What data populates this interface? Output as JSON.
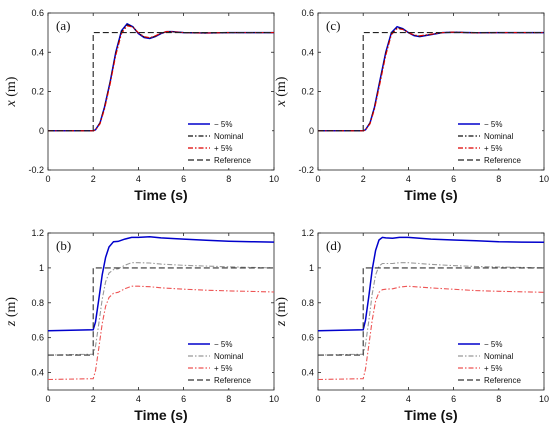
{
  "chart_data": [
    {
      "type": "line",
      "panel_label": "(a)",
      "xlabel": "Time (s)",
      "ylabel_var": "x",
      "ylabel_unit": " (m)",
      "xlim": [
        0,
        10
      ],
      "ylim": [
        -0.2,
        0.6
      ],
      "xticks": [
        "0",
        "2",
        "4",
        "6",
        "8",
        "10"
      ],
      "yticks": [
        "-0.2",
        "0",
        "0.2",
        "0.4",
        "0.6"
      ],
      "legend_position": "bottom-right",
      "series": [
        {
          "name": "− 5%",
          "color": "#0000cc",
          "style": "solid",
          "x": [
            0,
            2.0,
            2.1,
            2.3,
            2.5,
            2.75,
            3.0,
            3.25,
            3.5,
            3.75,
            4.0,
            4.25,
            4.5,
            4.75,
            5.0,
            5.25,
            5.5,
            6.0,
            7.0,
            8.0,
            10.0
          ],
          "y": [
            0,
            0,
            0.005,
            0.04,
            0.12,
            0.25,
            0.4,
            0.51,
            0.545,
            0.53,
            0.495,
            0.475,
            0.47,
            0.48,
            0.495,
            0.505,
            0.505,
            0.5,
            0.498,
            0.5,
            0.5
          ]
        },
        {
          "name": "Nominal",
          "color": "#111111",
          "style": "dashdot",
          "x": [
            0,
            2.0,
            2.1,
            2.3,
            2.5,
            2.75,
            3.0,
            3.25,
            3.5,
            3.75,
            4.0,
            4.25,
            4.5,
            4.75,
            5.0,
            5.25,
            5.5,
            6.0,
            7.0,
            8.0,
            10.0
          ],
          "y": [
            0,
            0,
            0.005,
            0.04,
            0.12,
            0.25,
            0.395,
            0.505,
            0.54,
            0.53,
            0.497,
            0.478,
            0.472,
            0.482,
            0.496,
            0.505,
            0.504,
            0.5,
            0.498,
            0.5,
            0.5
          ]
        },
        {
          "name": "+ 5%",
          "color": "#dd0000",
          "style": "dashdot",
          "x": [
            0,
            2.0,
            2.1,
            2.3,
            2.5,
            2.75,
            3.0,
            3.25,
            3.5,
            3.75,
            4.0,
            4.25,
            4.5,
            4.75,
            5.0,
            5.25,
            5.5,
            6.0,
            7.0,
            8.0,
            10.0
          ],
          "y": [
            0,
            0,
            0.004,
            0.035,
            0.11,
            0.24,
            0.385,
            0.495,
            0.535,
            0.528,
            0.5,
            0.48,
            0.474,
            0.484,
            0.497,
            0.505,
            0.504,
            0.5,
            0.498,
            0.5,
            0.5
          ]
        },
        {
          "name": "Reference",
          "color": "#222222",
          "style": "dashed",
          "x": [
            0,
            2.0,
            2.0,
            10.0
          ],
          "y": [
            0,
            0,
            0.5,
            0.5
          ]
        }
      ]
    },
    {
      "type": "line",
      "panel_label": "(c)",
      "xlabel": "Time (s)",
      "ylabel_var": "x",
      "ylabel_unit": " (m)",
      "xlim": [
        0,
        10
      ],
      "ylim": [
        -0.2,
        0.6
      ],
      "xticks": [
        "0",
        "2",
        "4",
        "6",
        "8",
        "10"
      ],
      "yticks": [
        "-0.2",
        "0",
        "0.2",
        "0.4",
        "0.6"
      ],
      "legend_position": "bottom-right",
      "series": [
        {
          "name": "− 5%",
          "color": "#0000cc",
          "style": "solid",
          "x": [
            0,
            2.0,
            2.1,
            2.3,
            2.5,
            2.75,
            3.0,
            3.25,
            3.5,
            3.75,
            4.0,
            4.25,
            4.5,
            5.0,
            5.5,
            6.0,
            7.0,
            8.0,
            10.0
          ],
          "y": [
            0,
            0,
            0.005,
            0.04,
            0.12,
            0.26,
            0.4,
            0.5,
            0.53,
            0.52,
            0.5,
            0.485,
            0.48,
            0.49,
            0.5,
            0.502,
            0.499,
            0.5,
            0.5
          ]
        },
        {
          "name": "Nominal",
          "color": "#111111",
          "style": "dashdot",
          "x": [
            0,
            2.0,
            2.1,
            2.3,
            2.5,
            2.75,
            3.0,
            3.25,
            3.5,
            3.75,
            4.0,
            4.25,
            4.5,
            5.0,
            5.5,
            6.0,
            7.0,
            8.0,
            10.0
          ],
          "y": [
            0,
            0,
            0.005,
            0.04,
            0.12,
            0.255,
            0.395,
            0.495,
            0.525,
            0.518,
            0.5,
            0.487,
            0.482,
            0.491,
            0.5,
            0.502,
            0.499,
            0.5,
            0.5
          ]
        },
        {
          "name": "+ 5%",
          "color": "#dd0000",
          "style": "dashdot",
          "x": [
            0,
            2.0,
            2.1,
            2.3,
            2.5,
            2.75,
            3.0,
            3.25,
            3.5,
            3.75,
            4.0,
            4.25,
            4.5,
            5.0,
            5.5,
            6.0,
            7.0,
            8.0,
            10.0
          ],
          "y": [
            0,
            0,
            0.004,
            0.035,
            0.11,
            0.245,
            0.385,
            0.49,
            0.52,
            0.516,
            0.5,
            0.488,
            0.484,
            0.492,
            0.5,
            0.502,
            0.499,
            0.5,
            0.5
          ]
        },
        {
          "name": "Reference",
          "color": "#222222",
          "style": "dashed",
          "x": [
            0,
            2.0,
            2.0,
            10.0
          ],
          "y": [
            0,
            0,
            0.5,
            0.5
          ]
        }
      ]
    },
    {
      "type": "line",
      "panel_label": "(b)",
      "xlabel": "Time (s)",
      "ylabel_var": "z",
      "ylabel_unit": " (m)",
      "xlim": [
        0,
        10
      ],
      "ylim": [
        0.3,
        1.2
      ],
      "xticks": [
        "0",
        "2",
        "4",
        "6",
        "8",
        "10"
      ],
      "yticks": [
        "0.4",
        "0.6",
        "0.8",
        "1",
        "1.2"
      ],
      "legend_position": "bottom-right",
      "series": [
        {
          "name": "− 5%",
          "color": "#0000cc",
          "style": "solid",
          "x": [
            0,
            2.0,
            2.1,
            2.25,
            2.4,
            2.55,
            2.7,
            2.9,
            3.1,
            3.4,
            3.7,
            4.0,
            4.5,
            5.0,
            6.0,
            7.0,
            8.0,
            9.0,
            10.0
          ],
          "y": [
            0.64,
            0.645,
            0.69,
            0.82,
            0.96,
            1.06,
            1.12,
            1.15,
            1.152,
            1.165,
            1.175,
            1.175,
            1.178,
            1.172,
            1.165,
            1.158,
            1.153,
            1.15,
            1.148
          ]
        },
        {
          "name": "Nominal",
          "color": "#999999",
          "style": "dashdot",
          "x": [
            0,
            2.0,
            2.1,
            2.25,
            2.4,
            2.55,
            2.7,
            2.9,
            3.1,
            3.4,
            3.7,
            4.0,
            4.5,
            5.0,
            6.0,
            7.0,
            8.0,
            9.0,
            10.0
          ],
          "y": [
            0.5,
            0.505,
            0.55,
            0.68,
            0.82,
            0.92,
            0.97,
            0.99,
            0.995,
            1.015,
            1.03,
            1.03,
            1.028,
            1.022,
            1.015,
            1.01,
            1.006,
            1.003,
            1.0
          ]
        },
        {
          "name": "+ 5%",
          "color": "#ee5555",
          "style": "dashdot",
          "x": [
            0,
            2.0,
            2.1,
            2.25,
            2.4,
            2.55,
            2.7,
            2.9,
            3.1,
            3.4,
            3.7,
            4.0,
            4.5,
            5.0,
            6.0,
            7.0,
            8.0,
            9.0,
            10.0
          ],
          "y": [
            0.36,
            0.365,
            0.41,
            0.54,
            0.68,
            0.78,
            0.83,
            0.855,
            0.86,
            0.88,
            0.895,
            0.895,
            0.892,
            0.886,
            0.878,
            0.872,
            0.868,
            0.865,
            0.862
          ]
        },
        {
          "name": "Reference",
          "color": "#333333",
          "style": "dashed",
          "x": [
            0,
            2.0,
            2.0,
            10.0
          ],
          "y": [
            0.5,
            0.5,
            1.0,
            1.0
          ]
        }
      ]
    },
    {
      "type": "line",
      "panel_label": "(d)",
      "xlabel": "Time (s)",
      "ylabel_var": "z",
      "ylabel_unit": " (m)",
      "xlim": [
        0,
        10
      ],
      "ylim": [
        0.3,
        1.2
      ],
      "xticks": [
        "0",
        "2",
        "4",
        "6",
        "8",
        "10"
      ],
      "yticks": [
        "0.4",
        "0.6",
        "0.8",
        "1",
        "1.2"
      ],
      "legend_position": "bottom-right",
      "series": [
        {
          "name": "− 5%",
          "color": "#0000cc",
          "style": "solid",
          "x": [
            0,
            2.0,
            2.1,
            2.25,
            2.4,
            2.55,
            2.7,
            2.85,
            3.0,
            3.3,
            3.6,
            4.0,
            4.5,
            5.0,
            6.0,
            7.0,
            8.0,
            9.0,
            10.0
          ],
          "y": [
            0.64,
            0.645,
            0.7,
            0.84,
            0.99,
            1.1,
            1.16,
            1.175,
            1.172,
            1.17,
            1.175,
            1.175,
            1.17,
            1.165,
            1.16,
            1.155,
            1.15,
            1.148,
            1.147
          ]
        },
        {
          "name": "Nominal",
          "color": "#999999",
          "style": "dashdot",
          "x": [
            0,
            2.0,
            2.1,
            2.25,
            2.4,
            2.55,
            2.7,
            2.85,
            3.0,
            3.3,
            3.6,
            4.0,
            4.5,
            5.0,
            6.0,
            7.0,
            8.0,
            9.0,
            10.0
          ],
          "y": [
            0.5,
            0.505,
            0.56,
            0.7,
            0.85,
            0.96,
            1.01,
            1.025,
            1.025,
            1.025,
            1.03,
            1.03,
            1.025,
            1.02,
            1.013,
            1.008,
            1.005,
            1.003,
            1.0
          ]
        },
        {
          "name": "+ 5%",
          "color": "#ee5555",
          "style": "dashdot",
          "x": [
            0,
            2.0,
            2.1,
            2.25,
            2.4,
            2.55,
            2.7,
            2.85,
            3.0,
            3.3,
            3.6,
            4.0,
            4.5,
            5.0,
            6.0,
            7.0,
            8.0,
            9.0,
            10.0
          ],
          "y": [
            0.36,
            0.365,
            0.42,
            0.56,
            0.7,
            0.81,
            0.86,
            0.875,
            0.878,
            0.88,
            0.89,
            0.895,
            0.89,
            0.885,
            0.877,
            0.87,
            0.866,
            0.863,
            0.86
          ]
        },
        {
          "name": "Reference",
          "color": "#333333",
          "style": "dashed",
          "x": [
            0,
            2.0,
            2.0,
            10.0
          ],
          "y": [
            0.5,
            0.5,
            1.0,
            1.0
          ]
        }
      ]
    }
  ]
}
